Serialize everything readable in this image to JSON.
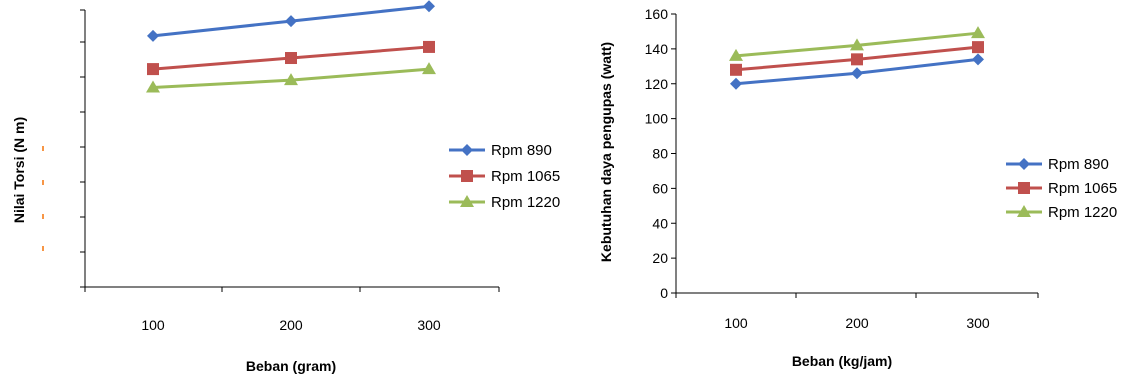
{
  "chart_data": [
    {
      "type": "line",
      "xlabel": "Beban (gram)",
      "ylabel": "Nilai Torsi (N m)",
      "categories": [
        "100",
        "200",
        "300"
      ],
      "ytick_labels": [],
      "ylim": [
        0,
        7.5
      ],
      "grid": false,
      "legend_position": "right",
      "series": [
        {
          "name": "Rpm 890",
          "values": [
            6.8,
            7.2,
            7.6
          ],
          "color": "#4472C4",
          "marker": "diamond"
        },
        {
          "name": "Rpm 1065",
          "values": [
            5.9,
            6.2,
            6.5
          ],
          "color": "#C0504D",
          "marker": "square"
        },
        {
          "name": "Rpm 1220",
          "values": [
            5.4,
            5.6,
            5.9
          ],
          "color": "#9BBB59",
          "marker": "triangle"
        }
      ]
    },
    {
      "type": "line",
      "xlabel": "Beban (kg/jam)",
      "ylabel": "Kebutuhan daya pengupas (watt)",
      "categories": [
        "100",
        "200",
        "300"
      ],
      "ytick_labels": [
        "0",
        "20",
        "40",
        "60",
        "80",
        "100",
        "120",
        "140",
        "160"
      ],
      "ylim": [
        0,
        160
      ],
      "grid": false,
      "legend_position": "right",
      "series": [
        {
          "name": "Rpm 890",
          "values": [
            120,
            126,
            134
          ],
          "color": "#4472C4",
          "marker": "diamond"
        },
        {
          "name": "Rpm 1065",
          "values": [
            128,
            134,
            141
          ],
          "color": "#C0504D",
          "marker": "square"
        },
        {
          "name": "Rpm 1220",
          "values": [
            136,
            142,
            149
          ],
          "color": "#9BBB59",
          "marker": "triangle"
        }
      ]
    }
  ]
}
